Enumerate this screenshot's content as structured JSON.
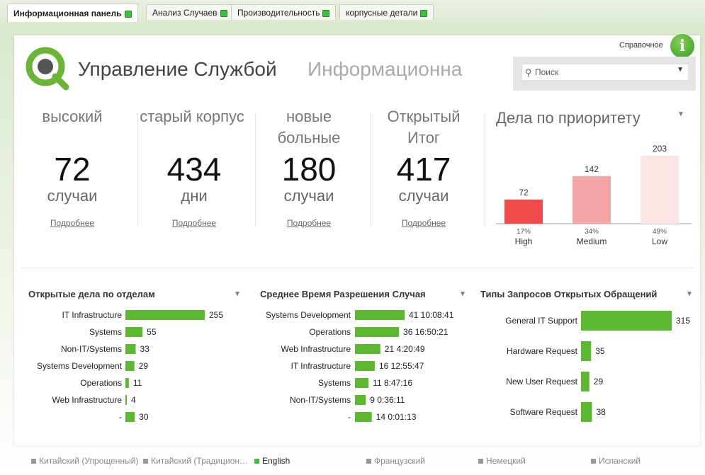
{
  "tabs": [
    {
      "label": "Информационная панель",
      "active": true
    },
    {
      "label": "Анализ Случаев",
      "active": false
    },
    {
      "label": "Производительность",
      "active": false
    },
    {
      "label": "корпусные детали",
      "active": false
    }
  ],
  "header": {
    "title": "Управление Службой",
    "subtitle": "Информационна",
    "help_label": "Справочное",
    "info_icon": "i",
    "search_placeholder": "Поиск"
  },
  "kpis": [
    {
      "title": "высокий",
      "value": "72",
      "unit": "случаи",
      "link": "Подробнее"
    },
    {
      "title": "старый корпус",
      "value": "434",
      "unit": "дни",
      "link": "Подробнее"
    },
    {
      "title": "новые больные",
      "value": "180",
      "unit": "случаи",
      "link": "Подробнее"
    },
    {
      "title": "Открытый Итог",
      "value": "417",
      "unit": "случаи",
      "link": "Подробнее"
    }
  ],
  "chart_data": [
    {
      "type": "bar",
      "title": "Дела по приоритету",
      "categories": [
        "High",
        "Medium",
        "Low"
      ],
      "values": [
        72,
        142,
        203
      ],
      "percent_labels": [
        "17%",
        "34%",
        "49%"
      ],
      "colors": [
        "#f04a4a",
        "#f5a5a5",
        "#fde4e4"
      ]
    },
    {
      "type": "bar",
      "orientation": "horizontal",
      "title": "Открытые дела по отделам",
      "categories": [
        "IT Infrastructure",
        "Systems",
        "Non-IT/Systems",
        "Systems Development",
        "Operations",
        "Web Infrastructure",
        "-"
      ],
      "values": [
        255,
        55,
        33,
        29,
        11,
        4,
        30
      ],
      "labels": [
        "255",
        "55",
        "33",
        "29",
        "11",
        "4",
        "30"
      ],
      "color": "#5cb82e"
    },
    {
      "type": "bar",
      "orientation": "horizontal",
      "title": "Среднее Время Разрешения Случая",
      "categories": [
        "Systems Development",
        "Operations",
        "Web Infrastructure",
        "IT Infrastructure",
        "Systems",
        "Non-IT/Systems",
        "-"
      ],
      "values": [
        41.42,
        36.7,
        21.18,
        16.54,
        11.37,
        9.03,
        14.0
      ],
      "labels": [
        "41 10:08:41",
        "36 16:50:21",
        "21 4:20:49",
        "16 12:55:47",
        "11 8:47:16",
        "9 0:36:11",
        "14 0:01:13"
      ],
      "color": "#5cb82e"
    },
    {
      "type": "bar",
      "orientation": "horizontal",
      "title": "Типы Запросов Открытых Обращений",
      "categories": [
        "General IT Support",
        "Hardware Request",
        "New User Request",
        "Software Request"
      ],
      "values": [
        315,
        35,
        29,
        38
      ],
      "labels": [
        "315",
        "35",
        "29",
        "38"
      ],
      "color": "#5cb82e"
    }
  ],
  "footer": {
    "languages": [
      {
        "label": "Китайский (Упрощенный)",
        "selected": false
      },
      {
        "label": "Китайский (Традицион…",
        "selected": false
      },
      {
        "label": "English",
        "selected": true
      },
      {
        "label": "Французский",
        "selected": false
      },
      {
        "label": "Немецкий",
        "selected": false
      },
      {
        "label": "Испанский",
        "selected": false
      }
    ]
  }
}
